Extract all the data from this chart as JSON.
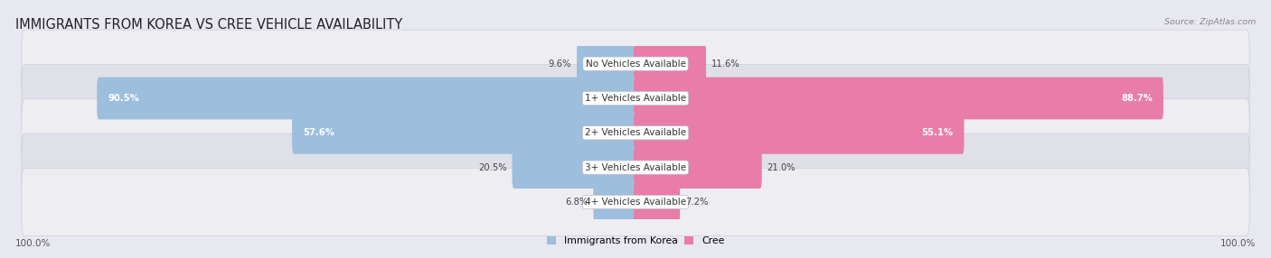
{
  "title": "IMMIGRANTS FROM KOREA VS CREE VEHICLE AVAILABILITY",
  "source": "Source: ZipAtlas.com",
  "categories": [
    "No Vehicles Available",
    "1+ Vehicles Available",
    "2+ Vehicles Available",
    "3+ Vehicles Available",
    "4+ Vehicles Available"
  ],
  "korea_values": [
    9.6,
    90.5,
    57.6,
    20.5,
    6.8
  ],
  "cree_values": [
    11.6,
    88.7,
    55.1,
    21.0,
    7.2
  ],
  "korea_color": "#9dbedd",
  "cree_color": "#e87da8",
  "row_bg_even": "#ededf2",
  "row_bg_odd": "#e0e0e8",
  "fig_bg": "#e8e8f0",
  "max_value": 100.0,
  "bar_height": 0.62,
  "title_fontsize": 10.5,
  "label_fontsize": 7.5,
  "value_fontsize": 7.2,
  "legend_fontsize": 7.8,
  "footer_fontsize": 7.5
}
